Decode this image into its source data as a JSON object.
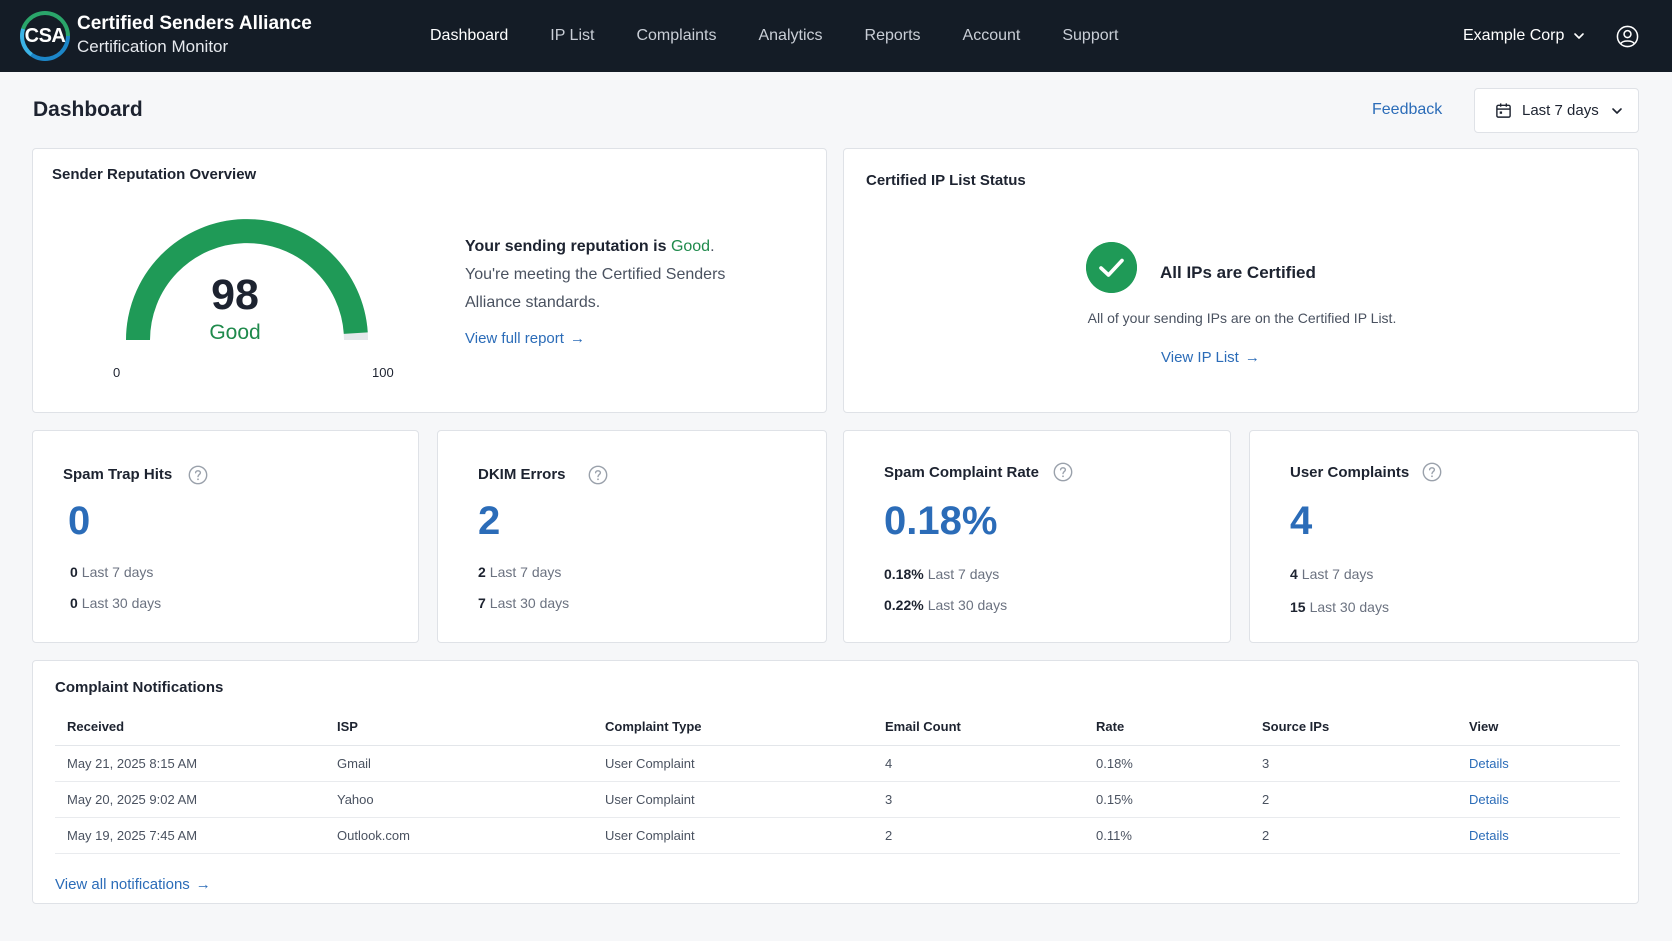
{
  "brand": {
    "logo_text": "CSA",
    "title": "Certified Senders Alliance",
    "subtitle": "Certification Monitor"
  },
  "nav": {
    "items": [
      {
        "label": "Dashboard",
        "active": true
      },
      {
        "label": "IP List",
        "active": false
      },
      {
        "label": "Complaints",
        "active": false
      },
      {
        "label": "Analytics",
        "active": false
      },
      {
        "label": "Reports",
        "active": false
      },
      {
        "label": "Account",
        "active": false
      },
      {
        "label": "Support",
        "active": false
      }
    ],
    "org": "Example Corp",
    "org_icon": "chevron-down-icon",
    "user_icon": "user-circle-icon"
  },
  "page": {
    "title": "Dashboard",
    "feedback": "Feedback",
    "date_range": "Last 7 days"
  },
  "reputation": {
    "title": "Sender Reputation Overview",
    "score": "98",
    "score_value": 98,
    "score_min_value": 0,
    "score_max_value": 100,
    "rating": "Good",
    "min": "0",
    "max": "100",
    "message_prefix": "Your sending reputation is ",
    "message_rating": "Good",
    "message_suffix": ".",
    "detail": "You're meeting the Certified Senders Alliance standards.",
    "link": "View full report",
    "link_arrow": "→"
  },
  "ip_list": {
    "title": "Certified IP List Status",
    "headline": "All IPs are Certified",
    "description": "All of your sending IPs are on the Certified IP List.",
    "link": "View IP List",
    "link_arrow": "→"
  },
  "stats": [
    {
      "title": "Spam Trap Hits",
      "value": "0",
      "last7_value": "0",
      "last7_label": "Last 7 days",
      "last30_value": "0",
      "last30_label": "Last 30 days"
    },
    {
      "title": "DKIM Errors",
      "value": "2",
      "last7_value": "2",
      "last7_label": "Last 7 days",
      "last30_value": "7",
      "last30_label": "Last 30 days"
    },
    {
      "title": "Spam Complaint Rate",
      "value": "0.18%",
      "last7_value": "0.18%",
      "last7_label": "Last 7 days",
      "last30_value": "0.22%",
      "last30_label": "Last 30 days"
    },
    {
      "title": "User Complaints",
      "value": "4",
      "last7_value": "4",
      "last7_label": "Last 7 days",
      "last30_value": "15",
      "last30_label": "Last 30 days"
    }
  ],
  "complaints": {
    "title": "Complaint Notifications",
    "columns": [
      "Received",
      "ISP",
      "Complaint Type",
      "Email Count",
      "Rate",
      "Source IPs",
      "View"
    ],
    "rows": [
      {
        "received": "May 21, 2025 8:15 AM",
        "isp": "Gmail",
        "type": "User Complaint",
        "count": "4",
        "rate": "0.18%",
        "ips": "3",
        "view": "Details"
      },
      {
        "received": "May 20, 2025 9:02 AM",
        "isp": "Yahoo",
        "type": "User Complaint",
        "count": "3",
        "rate": "0.15%",
        "ips": "2",
        "view": "Details"
      },
      {
        "received": "May 19, 2025 7:45 AM",
        "isp": "Outlook.com",
        "type": "User Complaint",
        "count": "2",
        "rate": "0.11%",
        "ips": "2",
        "view": "Details"
      }
    ],
    "view_all": "View all notifications",
    "view_all_arrow": "→"
  },
  "colors": {
    "nav_bg": "#141c26",
    "accent_blue": "#2b6cb8",
    "good_green": "#1f8a4c",
    "gauge_green": "#1f9a57",
    "gauge_track": "#e6e8eb"
  }
}
